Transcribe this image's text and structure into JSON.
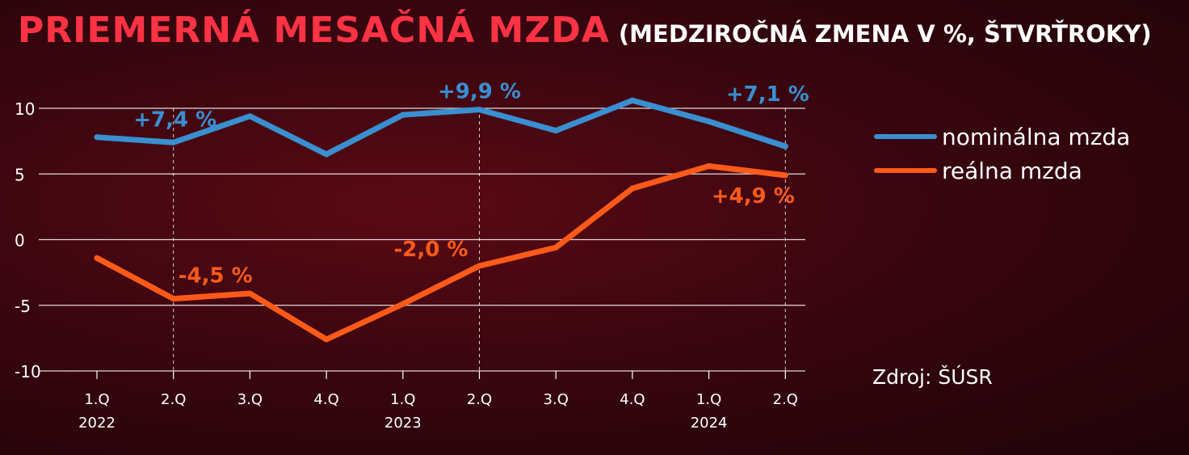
{
  "title": "PRIEMERNÁ MESAČNÁ MZDA",
  "subtitle": "(MEDZIROČNÁ ZMENA V %, ŠTVRŤROKY)",
  "source": "Zdroj: ŠÚSR",
  "colors": {
    "nominal": "#3a8fd0",
    "real": "#ff5a1a",
    "title": "#ff3344",
    "grid": "#ffffff"
  },
  "chart_data": {
    "type": "line",
    "categories": [
      "1.Q",
      "2.Q",
      "3.Q",
      "4.Q",
      "1.Q",
      "2.Q",
      "3.Q",
      "4.Q",
      "1.Q",
      "2.Q"
    ],
    "years": [
      {
        "label": "2022",
        "index": 0
      },
      {
        "label": "2023",
        "index": 4
      },
      {
        "label": "2024",
        "index": 8
      }
    ],
    "ylim": [
      -10,
      10
    ],
    "yticks": [
      "10",
      "5",
      "0",
      "-5",
      "-10"
    ],
    "ytick_values": [
      10,
      5,
      0,
      -5,
      -10
    ],
    "series": [
      {
        "name": "nominálna mzda",
        "key": "nominal",
        "values": [
          7.8,
          7.4,
          9.4,
          6.5,
          9.5,
          9.9,
          8.3,
          10.6,
          9.0,
          7.1
        ]
      },
      {
        "name": "reálna mzda",
        "key": "real",
        "values": [
          -1.4,
          -4.5,
          -4.1,
          -7.6,
          -4.9,
          -2.0,
          -0.6,
          3.9,
          5.6,
          4.9
        ]
      }
    ],
    "annotations": [
      {
        "text": "+7,4 %",
        "series": "nominal",
        "index": 1
      },
      {
        "text": "+9,9 %",
        "series": "nominal",
        "index": 5
      },
      {
        "text": "+7,1 %",
        "series": "nominal",
        "index": 9
      },
      {
        "text": "-4,5 %",
        "series": "real",
        "index": 1
      },
      {
        "text": "-2,0 %",
        "series": "real",
        "index": 5
      },
      {
        "text": "+4,9 %",
        "series": "real",
        "index": 9
      }
    ],
    "highlight_indices": [
      1,
      5,
      9
    ],
    "grid": true,
    "legend_position": "right"
  }
}
